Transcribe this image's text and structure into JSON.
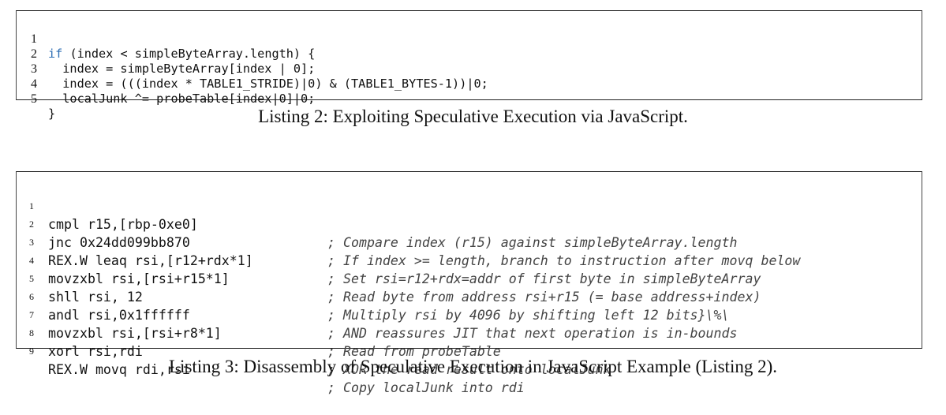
{
  "listing2": {
    "lines": [
      {
        "num": "1",
        "kw": "if",
        "code": " (index < simpleByteArray.length) {"
      },
      {
        "num": "2",
        "kw": "",
        "code": "  index = simpleByteArray[index | 0];"
      },
      {
        "num": "3",
        "kw": "",
        "code": "  index = (((index * TABLE1_STRIDE)|0) & (TABLE1_BYTES-1))|0;"
      },
      {
        "num": "4",
        "kw": "",
        "code": "  localJunk ^= probeTable[index|0]|0;"
      },
      {
        "num": "5",
        "kw": "",
        "code": "}"
      }
    ],
    "caption": "Listing 2: Exploiting Speculative Execution via JavaScript."
  },
  "listing3": {
    "lines": [
      {
        "num": "1",
        "code": "cmpl r15,[rbp-0xe0]",
        "comment": "; Compare index (r15) against simpleByteArray.length"
      },
      {
        "num": "2",
        "code": "jnc 0x24dd099bb870",
        "comment": "; If index >= length, branch to instruction after movq below"
      },
      {
        "num": "3",
        "code": "REX.W leaq rsi,[r12+rdx*1]",
        "comment": "; Set rsi=r12+rdx=addr of first byte in simpleByteArray"
      },
      {
        "num": "4",
        "code": "movzxbl rsi,[rsi+r15*1]",
        "comment": "; Read byte from address rsi+r15 (= base address+index)"
      },
      {
        "num": "5",
        "code": "shll rsi, 12",
        "comment": "; Multiply rsi by 4096 by shifting left 12 bits}\\%\\"
      },
      {
        "num": "6",
        "code": "andl rsi,0x1ffffff",
        "comment": "; AND reassures JIT that next operation is in-bounds"
      },
      {
        "num": "7",
        "code": "movzxbl rsi,[rsi+r8*1]",
        "comment": "; Read from probeTable"
      },
      {
        "num": "8",
        "code": "xorl rsi,rdi",
        "comment": "; XOR the read result onto localJunk"
      },
      {
        "num": "9",
        "code": "REX.W movq rdi,rsi",
        "comment": "; Copy localJunk into rdi"
      }
    ],
    "caption": "Listing 3: Disassembly of Speculative Execution in JavaScript Example (Listing 2)."
  }
}
